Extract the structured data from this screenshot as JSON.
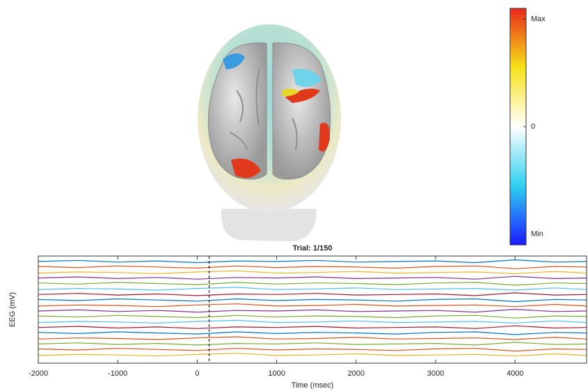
{
  "chart_data": [
    {
      "type": "colorbar",
      "colors": [
        "#1a1aff",
        "#2fd0f0",
        "#ffffff",
        "#f7e21a",
        "#e8281a"
      ],
      "ylim": [
        -1.1,
        1.1
      ],
      "yticks": [
        {
          "value": -1.0,
          "label": "Min"
        },
        0,
        {
          "value": 1.0,
          "label": "Max"
        }
      ]
    },
    {
      "type": "line",
      "title": "Trial: 1/150",
      "xlabel": "Time (msec)",
      "ylabel": "EEG (mV)",
      "xlim": [
        -2000,
        4900
      ],
      "xticks": [
        -2000,
        -1000,
        0,
        1000,
        2000,
        3000,
        4000
      ],
      "ylim": [
        0,
        19.5
      ],
      "event_lines": [
        150
      ],
      "x": [
        -2000,
        -1500,
        -1000,
        -500,
        0,
        500,
        1000,
        1500,
        2000,
        2500,
        3000,
        3500,
        4000,
        4500,
        4900
      ],
      "series": [
        {
          "color": "#0072bd",
          "values": [
            18.5,
            18.7,
            18.4,
            18.6,
            18.3,
            18.6,
            18.5,
            18.7,
            18.4,
            18.5,
            18.6,
            18.3,
            18.8,
            18.4,
            18.5
          ]
        },
        {
          "color": "#d95319",
          "values": [
            17.6,
            17.4,
            17.7,
            17.5,
            17.3,
            17.7,
            17.4,
            17.6,
            17.5,
            17.3,
            17.6,
            17.7,
            17.2,
            17.6,
            17.5
          ]
        },
        {
          "color": "#edb120",
          "values": [
            16.4,
            16.6,
            16.5,
            16.3,
            16.6,
            16.8,
            16.4,
            16.5,
            16.7,
            16.4,
            16.5,
            16.6,
            16.3,
            16.7,
            16.4
          ]
        },
        {
          "color": "#7e2f8e",
          "values": [
            15.5,
            15.7,
            15.4,
            15.6,
            15.3,
            15.6,
            15.5,
            15.7,
            15.4,
            15.5,
            15.6,
            15.3,
            15.8,
            15.4,
            15.5
          ]
        },
        {
          "color": "#77ac30",
          "values": [
            14.6,
            14.4,
            14.7,
            14.5,
            14.3,
            14.7,
            14.4,
            14.6,
            14.5,
            14.3,
            14.6,
            14.7,
            14.2,
            14.6,
            14.5
          ]
        },
        {
          "color": "#4dbeee",
          "values": [
            13.4,
            13.6,
            13.5,
            13.3,
            13.6,
            13.8,
            13.4,
            13.5,
            13.7,
            13.4,
            13.5,
            13.6,
            13.3,
            13.7,
            13.4
          ]
        },
        {
          "color": "#a2142f",
          "values": [
            12.5,
            12.7,
            12.4,
            12.6,
            12.3,
            12.6,
            12.5,
            12.7,
            12.4,
            12.5,
            12.6,
            12.3,
            12.8,
            12.4,
            12.5
          ]
        },
        {
          "color": "#0072bd",
          "values": [
            11.6,
            11.4,
            11.7,
            11.5,
            11.3,
            11.7,
            11.4,
            11.6,
            11.5,
            11.3,
            11.6,
            11.7,
            11.2,
            11.6,
            11.5
          ]
        },
        {
          "color": "#d95319",
          "values": [
            10.4,
            10.6,
            10.5,
            10.3,
            10.6,
            10.8,
            10.4,
            10.5,
            10.7,
            10.4,
            10.5,
            10.6,
            10.3,
            10.7,
            10.4
          ]
        },
        {
          "color": "#7e2f8e",
          "values": [
            9.5,
            9.7,
            9.4,
            9.6,
            9.3,
            9.6,
            9.5,
            9.7,
            9.4,
            9.5,
            9.6,
            9.3,
            9.8,
            9.4,
            9.5
          ]
        },
        {
          "color": "#77ac30",
          "values": [
            8.6,
            8.4,
            8.7,
            8.5,
            8.3,
            8.7,
            8.4,
            8.6,
            8.5,
            8.3,
            8.6,
            8.7,
            8.2,
            8.6,
            8.5
          ]
        },
        {
          "color": "#4dbeee",
          "values": [
            7.4,
            7.6,
            7.5,
            7.3,
            7.6,
            7.8,
            7.4,
            7.5,
            7.7,
            7.4,
            7.5,
            7.6,
            7.3,
            7.7,
            7.4
          ]
        },
        {
          "color": "#a2142f",
          "values": [
            6.5,
            6.7,
            6.4,
            6.6,
            6.3,
            6.6,
            6.5,
            6.7,
            6.4,
            6.5,
            6.6,
            6.3,
            6.8,
            6.4,
            6.5
          ]
        },
        {
          "color": "#0072bd",
          "values": [
            5.6,
            5.4,
            5.7,
            5.5,
            5.3,
            5.7,
            5.4,
            5.6,
            5.5,
            5.3,
            5.6,
            5.7,
            5.2,
            5.6,
            5.5
          ]
        },
        {
          "color": "#d95319",
          "values": [
            4.4,
            4.6,
            4.5,
            4.3,
            4.6,
            4.8,
            4.4,
            4.5,
            4.7,
            4.4,
            4.5,
            4.6,
            4.3,
            4.7,
            4.4
          ]
        },
        {
          "color": "#77ac30",
          "values": [
            3.5,
            3.7,
            3.4,
            3.6,
            3.3,
            3.6,
            3.5,
            3.7,
            3.4,
            3.5,
            3.6,
            3.3,
            3.8,
            3.4,
            3.5
          ]
        },
        {
          "color": "#d95319",
          "values": [
            2.6,
            2.4,
            2.7,
            2.5,
            2.3,
            2.7,
            2.4,
            2.6,
            2.5,
            2.3,
            2.6,
            2.7,
            2.2,
            2.6,
            2.5
          ]
        },
        {
          "color": "#edb120",
          "values": [
            1.4,
            1.6,
            1.5,
            1.3,
            1.6,
            1.8,
            1.4,
            1.5,
            1.7,
            1.4,
            1.5,
            1.6,
            1.3,
            1.7,
            1.4
          ]
        }
      ]
    }
  ]
}
